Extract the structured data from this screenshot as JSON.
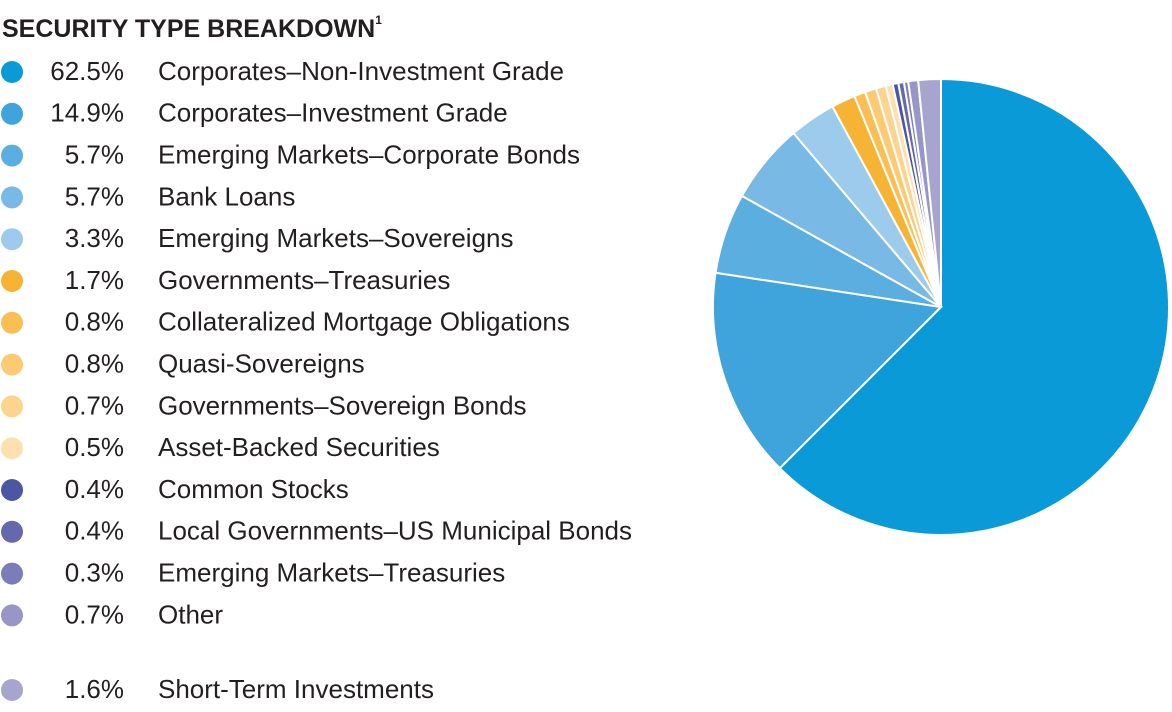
{
  "chart_data": {
    "type": "pie",
    "title": "SECURITY TYPE BREAKDOWN",
    "title_superscript": "1",
    "categories": [
      "Corporates–Non-Investment Grade",
      "Corporates–Investment Grade",
      "Emerging Markets–Corporate Bonds",
      "Bank Loans",
      "Emerging Markets–Sovereigns",
      "Governments–Treasuries",
      "Collateralized Mortgage Obligations",
      "Quasi-Sovereigns",
      "Governments–Sovereign Bonds",
      "Asset-Backed Securities",
      "Common Stocks",
      "Local Governments–US Municipal Bonds",
      "Emerging Markets–Treasuries",
      "Other",
      "Short-Term Investments"
    ],
    "values": [
      62.5,
      14.9,
      5.7,
      5.7,
      3.3,
      1.7,
      0.8,
      0.8,
      0.7,
      0.5,
      0.4,
      0.4,
      0.3,
      0.7,
      1.6
    ],
    "value_labels": [
      "62.5%",
      "14.9%",
      "5.7%",
      "5.7%",
      "3.3%",
      "1.7%",
      "0.8%",
      "0.8%",
      "0.7%",
      "0.5%",
      "0.4%",
      "0.4%",
      "0.3%",
      "0.7%",
      "1.6%"
    ],
    "colors": [
      "#0a9ad8",
      "#3fa4db",
      "#5aaee0",
      "#79b9e5",
      "#9ccbec",
      "#f7b334",
      "#f9bf55",
      "#fbca72",
      "#fcd48e",
      "#fde0ae",
      "#4b57a3",
      "#6468ad",
      "#7c7db8",
      "#9796c6",
      "#a7a4d0"
    ],
    "legend": "left"
  }
}
